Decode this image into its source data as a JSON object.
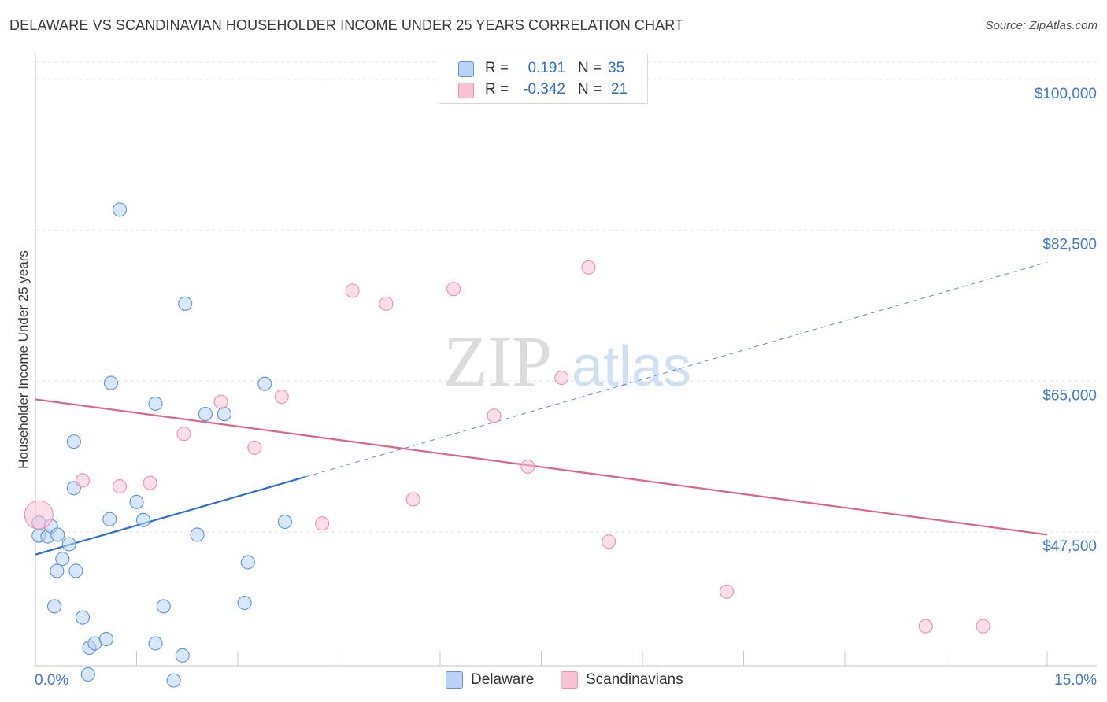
{
  "title": "DELAWARE VS SCANDINAVIAN HOUSEHOLDER INCOME UNDER 25 YEARS CORRELATION CHART",
  "source": "Source: ZipAtlas.com",
  "watermark": {
    "zip": "ZIP",
    "atlas": "atlas"
  },
  "stats": {
    "rows": [
      {
        "r_label": "R =",
        "r_value": "0.191",
        "n_label": "N =",
        "n_value": "35",
        "color": "#a9c9f2"
      },
      {
        "r_label": "R =",
        "r_value": "-0.342",
        "n_label": "N =",
        "n_value": "21",
        "color": "#f7b9cc"
      }
    ]
  },
  "legend": {
    "delaware": "Delaware",
    "scandinavians": "Scandinavians"
  },
  "chart_data": {
    "type": "scatter",
    "title": "DELAWARE VS SCANDINAVIAN HOUSEHOLDER INCOME UNDER 25 YEARS CORRELATION CHART",
    "xlabel": "",
    "ylabel": "Householder Income Under 25 years",
    "xlim": [
      0,
      15
    ],
    "ylim": [
      32000,
      102000
    ],
    "x_tick_labels": [
      "0.0%",
      "15.0%"
    ],
    "y_ticks": [
      {
        "value": 100000,
        "label": "$100,000"
      },
      {
        "value": 82500,
        "label": "$82,500"
      },
      {
        "value": 65000,
        "label": "$65,000"
      },
      {
        "value": 47500,
        "label": "$47,500"
      }
    ],
    "grid": true,
    "series": [
      {
        "name": "Delaware",
        "color": "#5b93dd",
        "fill": "#b8d3f5",
        "points": [
          [
            0.05,
            48.6
          ],
          [
            0.05,
            47.1
          ],
          [
            0.18,
            47.0
          ],
          [
            0.23,
            48.2
          ],
          [
            0.33,
            47.2
          ],
          [
            0.5,
            46.1
          ],
          [
            0.28,
            38.9
          ],
          [
            0.32,
            43.0
          ],
          [
            0.4,
            44.4
          ],
          [
            0.6,
            43.0
          ],
          [
            0.57,
            58.0
          ],
          [
            0.57,
            52.6
          ],
          [
            0.7,
            37.6
          ],
          [
            0.8,
            34.1
          ],
          [
            0.88,
            34.6
          ],
          [
            1.05,
            35.1
          ],
          [
            0.78,
            31.0
          ],
          [
            1.1,
            49.0
          ],
          [
            1.12,
            64.8
          ],
          [
            1.25,
            84.9
          ],
          [
            1.5,
            51.0
          ],
          [
            1.6,
            48.9
          ],
          [
            1.78,
            34.6
          ],
          [
            1.78,
            62.4
          ],
          [
            1.9,
            38.9
          ],
          [
            2.05,
            30.3
          ],
          [
            2.18,
            33.2
          ],
          [
            2.22,
            74.0
          ],
          [
            2.4,
            47.2
          ],
          [
            2.52,
            61.2
          ],
          [
            2.8,
            61.2
          ],
          [
            3.1,
            39.3
          ],
          [
            3.15,
            44.0
          ],
          [
            3.4,
            64.7
          ],
          [
            3.7,
            48.7
          ]
        ]
      },
      {
        "name": "Scandinavians",
        "color": "#ef8fac",
        "fill": "#f8c3d3",
        "points": [
          [
            0.05,
            49.5
          ],
          [
            0.7,
            53.5
          ],
          [
            1.25,
            52.8
          ],
          [
            1.7,
            53.2
          ],
          [
            2.2,
            58.9
          ],
          [
            2.75,
            62.6
          ],
          [
            3.25,
            57.3
          ],
          [
            3.65,
            63.2
          ],
          [
            4.25,
            48.5
          ],
          [
            4.7,
            75.5
          ],
          [
            5.2,
            74.0
          ],
          [
            5.6,
            51.3
          ],
          [
            6.2,
            75.7
          ],
          [
            6.8,
            61.0
          ],
          [
            7.3,
            55.1
          ],
          [
            7.8,
            65.4
          ],
          [
            8.2,
            78.2
          ],
          [
            8.5,
            46.4
          ],
          [
            10.25,
            40.6
          ],
          [
            13.2,
            36.6
          ],
          [
            14.05,
            36.6
          ]
        ]
      }
    ],
    "trendlines": [
      {
        "series": "Delaware",
        "from": [
          0,
          44.9
        ],
        "to": [
          4.0,
          53.9
        ],
        "dashed_to": [
          15.0,
          78.8
        ]
      },
      {
        "series": "Scandinavians",
        "from": [
          0,
          62.9
        ],
        "to": [
          15.0,
          47.2
        ]
      }
    ],
    "value_scale": "points are [x percent, y thousands of dollars]"
  }
}
